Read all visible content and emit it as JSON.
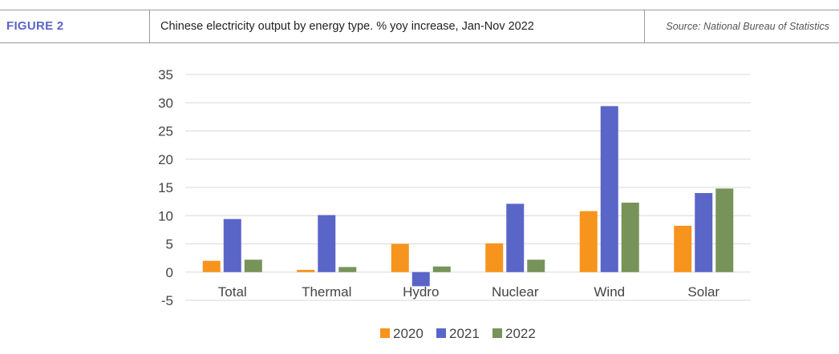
{
  "figure": {
    "label": "FIGURE 2",
    "title": "Chinese electricity output by energy type. % yoy increase, Jan-Nov 2022",
    "source": "Source: National Bureau of Statistics"
  },
  "chart_data": {
    "type": "bar",
    "categories": [
      "Total",
      "Thermal",
      "Hydro",
      "Nuclear",
      "Wind",
      "Solar"
    ],
    "series": [
      {
        "name": "2020",
        "color": "#F7941D",
        "values": [
          2.0,
          0.4,
          5.0,
          5.1,
          10.8,
          8.2
        ]
      },
      {
        "name": "2021",
        "color": "#5A65C8",
        "values": [
          9.4,
          10.1,
          -2.5,
          12.1,
          29.4,
          14.0
        ]
      },
      {
        "name": "2022",
        "color": "#77935A",
        "values": [
          2.2,
          0.9,
          1.0,
          2.2,
          12.3,
          14.8
        ]
      }
    ],
    "ylim": [
      -5,
      35
    ],
    "yticks": [
      -5,
      0,
      5,
      10,
      15,
      20,
      25,
      30,
      35
    ],
    "grid": true,
    "legend": "bottom-center"
  }
}
